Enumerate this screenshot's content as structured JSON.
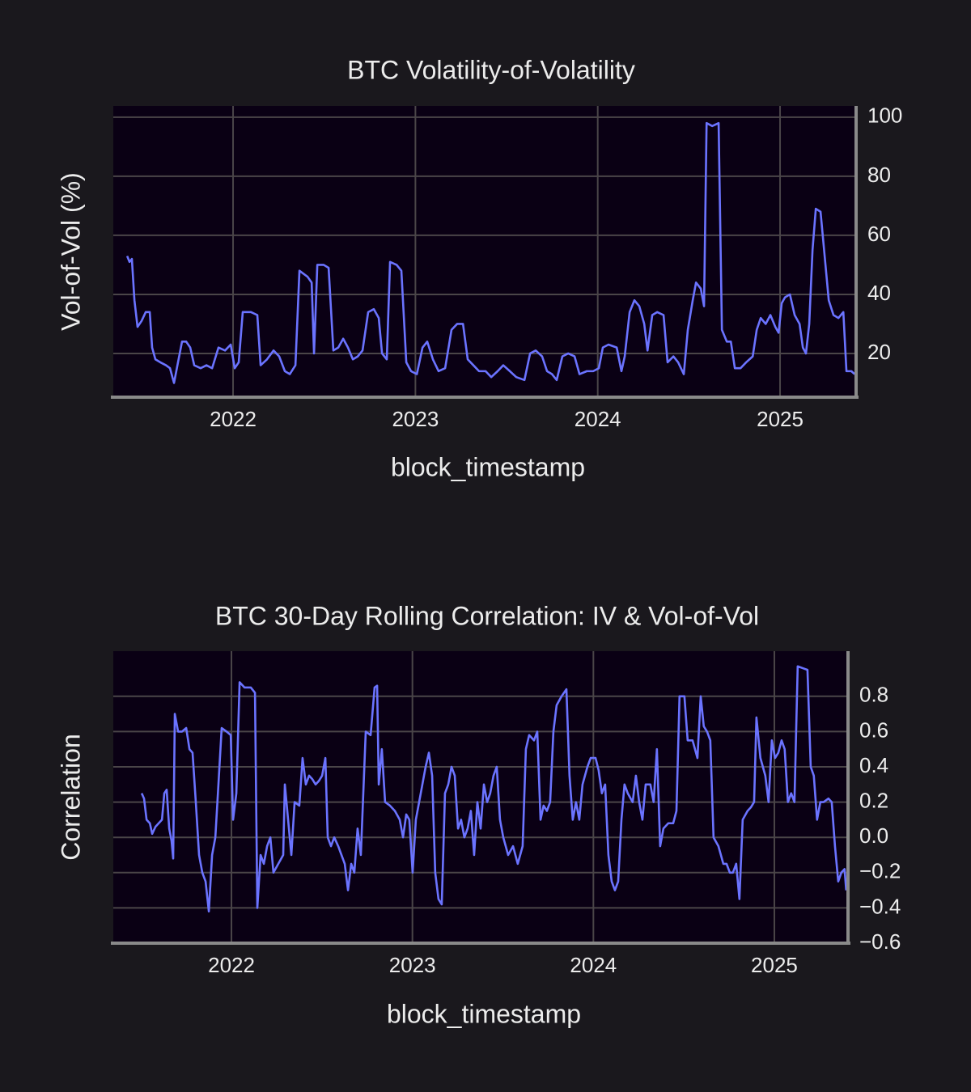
{
  "chart_data": [
    {
      "type": "line",
      "title": "BTC Volatility-of-Volatility",
      "xlabel": "block_timestamp",
      "ylabel": "Vol-of-Vol (%)",
      "xlim": [
        2021.343,
        2025.417
      ],
      "xticks": [
        2022,
        2023,
        2024,
        2025
      ],
      "ylim": [
        5.2,
        103.8
      ],
      "yticks": [
        20,
        40,
        60,
        80,
        100
      ],
      "grid": true,
      "y_axis_side": "right",
      "series": [
        {
          "name": null,
          "color": "#6b73ff",
          "x": [
            2021.419,
            2021.432,
            2021.445,
            2021.459,
            2021.476,
            2021.498,
            2021.521,
            2021.543,
            2021.556,
            2021.574,
            2021.601,
            2021.632,
            2021.654,
            2021.676,
            2021.698,
            2021.72,
            2021.743,
            2021.765,
            2021.787,
            2021.822,
            2021.854,
            2021.885,
            2021.92,
            2021.956,
            2021.987,
            2022.009,
            2022.031,
            2022.053,
            2022.098,
            2022.133,
            2022.151,
            2022.186,
            2022.222,
            2022.253,
            2022.284,
            2022.311,
            2022.342,
            2022.364,
            2022.408,
            2022.431,
            2022.444,
            2022.462,
            2022.497,
            2022.524,
            2022.55,
            2022.577,
            2022.604,
            2022.63,
            2022.657,
            2022.684,
            2022.71,
            2022.741,
            2022.772,
            2022.799,
            2022.817,
            2022.843,
            2022.861,
            2022.897,
            2022.923,
            2022.95,
            2022.976,
            2023.008,
            2023.039,
            2023.065,
            2023.096,
            2023.127,
            2023.163,
            2023.198,
            2023.229,
            2023.261,
            2023.287,
            2023.318,
            2023.349,
            2023.385,
            2023.416,
            2023.451,
            2023.482,
            2023.518,
            2023.553,
            2023.598,
            2023.629,
            2023.66,
            2023.695,
            2023.722,
            2023.749,
            2023.775,
            2023.806,
            2023.838,
            2023.873,
            2023.9,
            2023.94,
            2023.975,
            2024.006,
            2024.028,
            2024.059,
            2024.104,
            2024.13,
            2024.148,
            2024.175,
            2024.201,
            2024.228,
            2024.255,
            2024.273,
            2024.299,
            2024.326,
            2024.361,
            2024.383,
            2024.415,
            2024.441,
            2024.472,
            2024.494,
            2024.521,
            2024.539,
            2024.565,
            2024.583,
            2024.597,
            2024.628,
            2024.663,
            2024.681,
            2024.708,
            2024.73,
            2024.752,
            2024.783,
            2024.814,
            2024.85,
            2024.872,
            2024.894,
            2024.921,
            2024.947,
            2024.974,
            2024.992,
            2025.009,
            2025.027,
            2025.054,
            2025.08,
            2025.107,
            2025.125,
            2025.142,
            2025.16,
            2025.178,
            2025.196,
            2025.222,
            2025.24,
            2025.267,
            2025.293,
            2025.32,
            2025.347,
            2025.364,
            2025.391,
            2025.409
          ],
          "values": [
            53,
            51,
            52,
            38,
            29,
            31,
            34,
            34,
            22,
            18,
            17,
            16,
            15,
            10,
            17,
            24,
            24,
            22,
            16,
            15,
            16,
            15,
            22,
            21,
            23,
            15,
            17,
            34,
            34,
            33,
            16,
            18,
            21,
            19,
            14,
            13,
            16,
            48,
            46,
            44,
            20,
            50,
            50,
            49,
            21,
            22,
            25,
            22,
            18,
            19,
            21,
            34,
            35,
            32,
            20,
            18,
            51,
            50,
            48,
            17,
            14,
            13,
            22,
            24,
            18,
            14,
            15,
            28,
            30,
            30,
            18,
            16,
            14,
            14,
            12,
            14,
            16,
            14,
            12,
            11,
            20,
            21,
            19,
            14,
            13,
            11,
            19,
            20,
            19,
            13,
            14,
            14,
            15,
            22,
            23,
            22,
            14,
            19,
            34,
            38,
            36,
            30,
            21,
            33,
            34,
            33,
            17,
            19,
            17,
            13,
            28,
            38,
            44,
            42,
            36,
            98,
            97,
            98,
            28,
            24,
            24,
            15,
            15,
            17,
            19,
            28,
            32,
            30,
            33,
            29,
            27,
            37,
            39,
            40,
            33,
            30,
            22,
            20,
            30,
            55,
            69,
            68,
            56,
            38,
            33,
            32,
            34,
            14,
            14,
            13
          ]
        }
      ]
    },
    {
      "type": "line",
      "title": "BTC 30-Day Rolling Correlation: IV & Vol-of-Vol",
      "xlabel": "block_timestamp",
      "ylabel": "Correlation",
      "xlim": [
        2021.347,
        2025.407
      ],
      "xticks": [
        2022,
        2023,
        2024,
        2025
      ],
      "ylim": [
        -0.6,
        1.056
      ],
      "yticks": [
        {
          "value": -0.6,
          "label": "−0.6"
        },
        {
          "value": -0.4,
          "label": "−0.4"
        },
        {
          "value": -0.2,
          "label": "−0.2"
        },
        {
          "value": 0,
          "label": "0.0"
        },
        0.2,
        0.4,
        0.6,
        0.8
      ],
      "grid": true,
      "y_axis_side": "right",
      "series": [
        {
          "name": null,
          "color": "#6b73ff",
          "x": [
            2021.504,
            2021.517,
            2021.531,
            2021.549,
            2021.562,
            2021.58,
            2021.598,
            2021.616,
            2021.629,
            2021.642,
            2021.656,
            2021.669,
            2021.678,
            2021.687,
            2021.705,
            2021.727,
            2021.75,
            2021.768,
            2021.785,
            2021.803,
            2021.821,
            2021.839,
            2021.857,
            2021.875,
            2021.893,
            2021.911,
            2021.928,
            2021.946,
            2021.973,
            2021.996,
            2022.009,
            2022.027,
            2022.045,
            2022.072,
            2022.107,
            2022.13,
            2022.143,
            2022.161,
            2022.179,
            2022.197,
            2022.215,
            2022.232,
            2022.259,
            2022.286,
            2022.295,
            2022.313,
            2022.331,
            2022.349,
            2022.375,
            2022.393,
            2022.411,
            2022.429,
            2022.447,
            2022.465,
            2022.483,
            2022.501,
            2022.519,
            2022.532,
            2022.55,
            2022.568,
            2022.59,
            2022.608,
            2022.626,
            2022.644,
            2022.662,
            2022.679,
            2022.697,
            2022.715,
            2022.742,
            2022.769,
            2022.791,
            2022.805,
            2022.814,
            2022.831,
            2022.849,
            2022.876,
            2022.903,
            2022.93,
            2022.948,
            2022.966,
            2022.983,
            2023.001,
            2023.019,
            2023.037,
            2023.055,
            2023.073,
            2023.091,
            2023.109,
            2023.126,
            2023.144,
            2023.162,
            2023.18,
            2023.198,
            2023.216,
            2023.234,
            2023.252,
            2023.269,
            2023.287,
            2023.305,
            2023.323,
            2023.341,
            2023.359,
            2023.377,
            2023.395,
            2023.413,
            2023.43,
            2023.448,
            2023.466,
            2023.484,
            2023.502,
            2023.529,
            2023.556,
            2023.582,
            2023.609,
            2023.627,
            2023.645,
            2023.672,
            2023.69,
            2023.708,
            2023.725,
            2023.743,
            2023.761,
            2023.779,
            2023.797,
            2023.824,
            2023.851,
            2023.868,
            2023.886,
            2023.904,
            2023.922,
            2023.94,
            2023.967,
            2023.985,
            2024.012,
            2024.029,
            2024.047,
            2024.065,
            2024.083,
            2024.101,
            2024.119,
            2024.137,
            2024.155,
            2024.172,
            2024.19,
            2024.217,
            2024.235,
            2024.253,
            2024.271,
            2024.289,
            2024.315,
            2024.333,
            2024.351,
            2024.369,
            2024.387,
            2024.414,
            2024.441,
            2024.459,
            2024.476,
            2024.503,
            2024.521,
            2024.548,
            2024.575,
            2024.593,
            2024.61,
            2024.628,
            2024.646,
            2024.664,
            2024.691,
            2024.718,
            2024.736,
            2024.754,
            2024.771,
            2024.789,
            2024.807,
            2024.825,
            2024.852,
            2024.87,
            2024.888,
            2024.901,
            2024.923,
            2024.95,
            2024.968,
            2024.986,
            2025.004,
            2025.022,
            2025.04,
            2025.057,
            2025.075,
            2025.093,
            2025.111,
            2025.129,
            2025.156,
            2025.183,
            2025.201,
            2025.218,
            2025.236,
            2025.254,
            2025.272,
            2025.299,
            2025.317,
            2025.335,
            2025.353,
            2025.37,
            2025.388,
            2025.397
          ],
          "values": [
            0.25,
            0.22,
            0.1,
            0.08,
            0.02,
            0.06,
            0.08,
            0.1,
            0.25,
            0.27,
            0.05,
            -0.02,
            -0.12,
            0.7,
            0.6,
            0.6,
            0.62,
            0.5,
            0.48,
            0.2,
            -0.1,
            -0.2,
            -0.25,
            -0.42,
            -0.1,
            0.0,
            0.3,
            0.62,
            0.6,
            0.58,
            0.1,
            0.25,
            0.88,
            0.85,
            0.85,
            0.82,
            -0.4,
            -0.1,
            -0.15,
            -0.05,
            0.0,
            -0.2,
            -0.15,
            -0.1,
            0.3,
            0.1,
            -0.1,
            0.2,
            0.18,
            0.45,
            0.3,
            0.35,
            0.33,
            0.3,
            0.32,
            0.35,
            0.45,
            0.0,
            -0.05,
            0.0,
            -0.05,
            -0.1,
            -0.15,
            -0.3,
            -0.15,
            -0.2,
            0.05,
            -0.1,
            0.6,
            0.58,
            0.85,
            0.86,
            0.3,
            0.5,
            0.2,
            0.18,
            0.15,
            0.1,
            0.0,
            0.13,
            0.1,
            -0.2,
            0.1,
            0.2,
            0.3,
            0.4,
            0.48,
            0.35,
            -0.2,
            -0.35,
            -0.38,
            0.25,
            0.3,
            0.4,
            0.35,
            0.05,
            0.1,
            0.0,
            0.05,
            0.15,
            -0.1,
            0.2,
            0.05,
            0.3,
            0.2,
            0.25,
            0.35,
            0.4,
            0.1,
            0.0,
            -0.1,
            -0.05,
            -0.15,
            -0.05,
            0.5,
            0.58,
            0.55,
            0.6,
            0.1,
            0.18,
            0.15,
            0.2,
            0.6,
            0.75,
            0.8,
            0.84,
            0.35,
            0.1,
            0.2,
            0.1,
            0.3,
            0.4,
            0.45,
            0.45,
            0.38,
            0.25,
            0.3,
            -0.1,
            -0.25,
            -0.3,
            -0.25,
            0.1,
            0.3,
            0.25,
            0.2,
            0.35,
            0.2,
            0.1,
            0.3,
            0.3,
            0.2,
            0.5,
            -0.05,
            0.05,
            0.08,
            0.08,
            0.15,
            0.8,
            0.8,
            0.55,
            0.55,
            0.45,
            0.8,
            0.63,
            0.6,
            0.55,
            0.0,
            -0.05,
            -0.15,
            -0.15,
            -0.2,
            -0.2,
            -0.15,
            -0.35,
            0.1,
            0.15,
            0.17,
            0.2,
            0.68,
            0.45,
            0.35,
            0.2,
            0.55,
            0.45,
            0.48,
            0.55,
            0.5,
            0.2,
            0.25,
            0.2,
            0.97,
            0.96,
            0.95,
            0.4,
            0.35,
            0.1,
            0.2,
            0.2,
            0.22,
            0.2,
            -0.05,
            -0.25,
            -0.2,
            -0.18,
            -0.3
          ]
        }
      ]
    }
  ]
}
